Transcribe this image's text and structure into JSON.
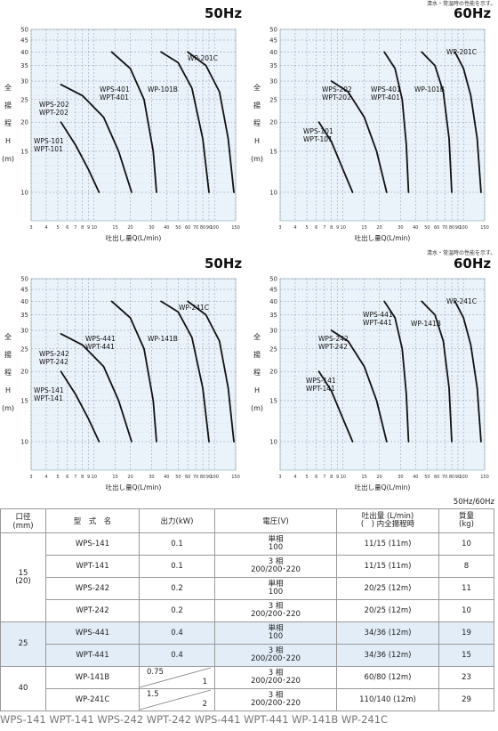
{
  "note": "清水・常温時の性能を示す。",
  "freq_label_top": "50Hz/60Hz",
  "y_axis_title": [
    "全",
    "揚",
    "程",
    "H",
    "(m)"
  ],
  "x_axis_title": "吐出し量Q(L/min)",
  "x_ticks": [
    "3",
    "4",
    "5",
    "6",
    "7",
    "8",
    "9",
    "10",
    "15",
    "20",
    "30",
    "40",
    "50",
    "60",
    "70",
    "80",
    "90",
    "100",
    "150"
  ],
  "y_ticks": [
    "10",
    "15",
    "20",
    "25",
    "30",
    "35",
    "40",
    "45",
    "50"
  ],
  "chart_data": [
    {
      "type": "line",
      "title": "50Hz",
      "xscale": "log",
      "yscale": "log",
      "xlim": [
        3,
        150
      ],
      "ylim": [
        10,
        50
      ],
      "grid": true,
      "xlabel": "吐出し量Q(L/min)",
      "ylabel": "全揚程H(m)",
      "series": [
        {
          "name": "WPS-101 WPT-101",
          "x": [
            5.3,
            7.0,
            9.0,
            11.0
          ],
          "y": [
            20.0,
            16.0,
            12.5,
            10.0
          ]
        },
        {
          "name": "WPS-202 WPT-202",
          "x": [
            5.3,
            8.0,
            12.0,
            16.0,
            20.5
          ],
          "y": [
            29.0,
            26.0,
            21.0,
            15.0,
            10.0
          ]
        },
        {
          "name": "WPS-401 WPT-401",
          "x": [
            14.0,
            20.0,
            26.0,
            31.0,
            33.0
          ],
          "y": [
            40.0,
            34.0,
            25.0,
            15.0,
            10.0
          ]
        },
        {
          "name": "WP-101B",
          "x": [
            36.0,
            50.0,
            65.0,
            80.0,
            90.0
          ],
          "y": [
            40.0,
            36.0,
            28.0,
            17.0,
            10.0
          ]
        },
        {
          "name": "WP-201C",
          "x": [
            60.0,
            85.0,
            110.0,
            130.0,
            145.0
          ],
          "y": [
            40.0,
            35.0,
            27.0,
            17.0,
            10.0
          ]
        }
      ],
      "labels": [
        "WPS-101",
        "WPT-101",
        "WPS-202",
        "WPT-202",
        "WPS-401",
        "WPT-401",
        "WP-101B",
        "WP-201C"
      ]
    },
    {
      "type": "line",
      "title": "60Hz",
      "xscale": "log",
      "yscale": "log",
      "xlim": [
        3,
        150
      ],
      "ylim": [
        10,
        50
      ],
      "grid": true,
      "xlabel": "吐出し量Q(L/min)",
      "ylabel": "全揚程H(m)",
      "series": [
        {
          "name": "WPS-101 WPT-101",
          "x": [
            6.3,
            8.0,
            10.0,
            12.0
          ],
          "y": [
            20.0,
            16.5,
            12.5,
            10.0
          ]
        },
        {
          "name": "WPS-202 WPT-202",
          "x": [
            8.0,
            11.0,
            15.0,
            19.0,
            23.0
          ],
          "y": [
            30.0,
            27.0,
            21.0,
            15.0,
            10.0
          ]
        },
        {
          "name": "WPS-401 WPT-401",
          "x": [
            22.0,
            27.0,
            31.0,
            33.5,
            35.0
          ],
          "y": [
            40.0,
            34.0,
            25.0,
            16.0,
            10.0
          ]
        },
        {
          "name": "WP-101B",
          "x": [
            45.0,
            58.0,
            68.0,
            76.0,
            80.0
          ],
          "y": [
            40.0,
            35.0,
            27.0,
            17.0,
            10.0
          ]
        },
        {
          "name": "WP-201C",
          "x": [
            85.0,
            100.0,
            115.0,
            130.0,
            140.0
          ],
          "y": [
            40.0,
            34.0,
            26.0,
            17.0,
            10.0
          ]
        }
      ],
      "labels": [
        "WPS-101",
        "WPT-101",
        "WPS-202",
        "WPT-202",
        "WPS-401",
        "WPT-401",
        "WP-101B",
        "WP-201C"
      ]
    },
    {
      "type": "line",
      "title": "50Hz",
      "xscale": "log",
      "yscale": "log",
      "xlim": [
        3,
        150
      ],
      "ylim": [
        10,
        50
      ],
      "grid": true,
      "xlabel": "吐出し量Q(L/min)",
      "ylabel": "全揚程H(m)",
      "series": [
        {
          "name": "WPS-141 WPT-141",
          "x": [
            5.3,
            7.0,
            9.0,
            11.0
          ],
          "y": [
            20.0,
            16.0,
            12.5,
            10.0
          ]
        },
        {
          "name": "WPS-242 WPT-242",
          "x": [
            5.3,
            8.0,
            12.0,
            16.0,
            20.5
          ],
          "y": [
            29.0,
            26.0,
            21.0,
            15.0,
            10.0
          ]
        },
        {
          "name": "WPS-441 WPT-441",
          "x": [
            14.0,
            20.0,
            26.0,
            31.0,
            33.0
          ],
          "y": [
            40.0,
            34.0,
            25.0,
            15.0,
            10.0
          ]
        },
        {
          "name": "WP-141B",
          "x": [
            36.0,
            50.0,
            65.0,
            80.0,
            90.0
          ],
          "y": [
            40.0,
            36.0,
            28.0,
            17.0,
            10.0
          ]
        },
        {
          "name": "WP-241C",
          "x": [
            60.0,
            85.0,
            110.0,
            130.0,
            145.0
          ],
          "y": [
            40.0,
            35.0,
            27.0,
            17.0,
            10.0
          ]
        }
      ],
      "labels": [
        "WPS-141",
        "WPT-141",
        "WPS-242",
        "WPT-242",
        "WPS-441",
        "WPT-441",
        "WP-141B",
        "WP-241C"
      ]
    },
    {
      "type": "line",
      "title": "60Hz",
      "xscale": "log",
      "yscale": "log",
      "xlim": [
        3,
        150
      ],
      "ylim": [
        10,
        50
      ],
      "grid": true,
      "xlabel": "吐出し量Q(L/min)",
      "ylabel": "全揚程H(m)",
      "series": [
        {
          "name": "WPS-141 WPT-141",
          "x": [
            6.3,
            8.0,
            10.0,
            12.0
          ],
          "y": [
            20.0,
            16.5,
            12.5,
            10.0
          ]
        },
        {
          "name": "WPS-242 WPT-242",
          "x": [
            8.0,
            11.0,
            15.0,
            19.0,
            23.0
          ],
          "y": [
            30.0,
            27.0,
            21.0,
            15.0,
            10.0
          ]
        },
        {
          "name": "WPS-441 WPT-441",
          "x": [
            22.0,
            27.0,
            31.0,
            33.5,
            35.0
          ],
          "y": [
            40.0,
            34.0,
            25.0,
            16.0,
            10.0
          ]
        },
        {
          "name": "WP-141B",
          "x": [
            45.0,
            58.0,
            68.0,
            76.0,
            80.0
          ],
          "y": [
            40.0,
            35.0,
            27.0,
            17.0,
            10.0
          ]
        },
        {
          "name": "WP-241C",
          "x": [
            85.0,
            100.0,
            115.0,
            130.0,
            140.0
          ],
          "y": [
            40.0,
            34.0,
            26.0,
            17.0,
            10.0
          ]
        }
      ],
      "labels": [
        "WPS-141",
        "WPT-141",
        "WPS-242",
        "WPT-242",
        "WPS-441",
        "WPT-441",
        "WP-141B",
        "WP-241C"
      ]
    }
  ],
  "table": {
    "headers": {
      "bore": "口径\n(mm)",
      "model": "型　式　名",
      "output": "出力(kW)",
      "voltage": "電圧(V)",
      "discharge": "吐出量 (L/min)\n(　) 内全揚程時",
      "mass": "質量\n(kg)"
    },
    "groups": [
      {
        "bore": "15\n(20)",
        "band": "a",
        "rows": [
          {
            "model": "WPS-141",
            "output": "0.1",
            "voltage": "単相\n100",
            "discharge": "11/15 (11m)",
            "mass": "10"
          },
          {
            "model": "WPT-141",
            "output": "0.1",
            "voltage": "3 相\n200/200･220",
            "discharge": "11/15 (11m)",
            "mass": "8"
          },
          {
            "model": "WPS-242",
            "output": "0.2",
            "voltage": "単相\n100",
            "discharge": "20/25 (12m)",
            "mass": "11"
          },
          {
            "model": "WPT-242",
            "output": "0.2",
            "voltage": "3 相\n200/200･220",
            "discharge": "20/25 (12m)",
            "mass": "10"
          }
        ]
      },
      {
        "bore": "25",
        "band": "b",
        "rows": [
          {
            "model": "WPS-441",
            "output": "0.4",
            "voltage": "単相\n100",
            "discharge": "34/36 (12m)",
            "mass": "19"
          },
          {
            "model": "WPT-441",
            "output": "0.4",
            "voltage": "3 相\n200/200･220",
            "discharge": "34/36 (12m)",
            "mass": "15"
          }
        ]
      },
      {
        "bore": "40",
        "band": "c",
        "rows": [
          {
            "model": "WP-141B",
            "output_a": "0.75",
            "output_b": "1",
            "voltage": "3 相\n200/200･220",
            "discharge": "60/80 (12m)",
            "mass": "23"
          },
          {
            "model": "WP-241C",
            "output_a": "1.5",
            "output_b": "2",
            "voltage": "3 相\n200/200･220",
            "discharge": "110/140 (12m)",
            "mass": "29"
          }
        ]
      }
    ]
  },
  "caption": "WPS-141 WPT-141 WPS-242 WPT-242 WPS-441 WPT-441 WP-141B WP-241C"
}
